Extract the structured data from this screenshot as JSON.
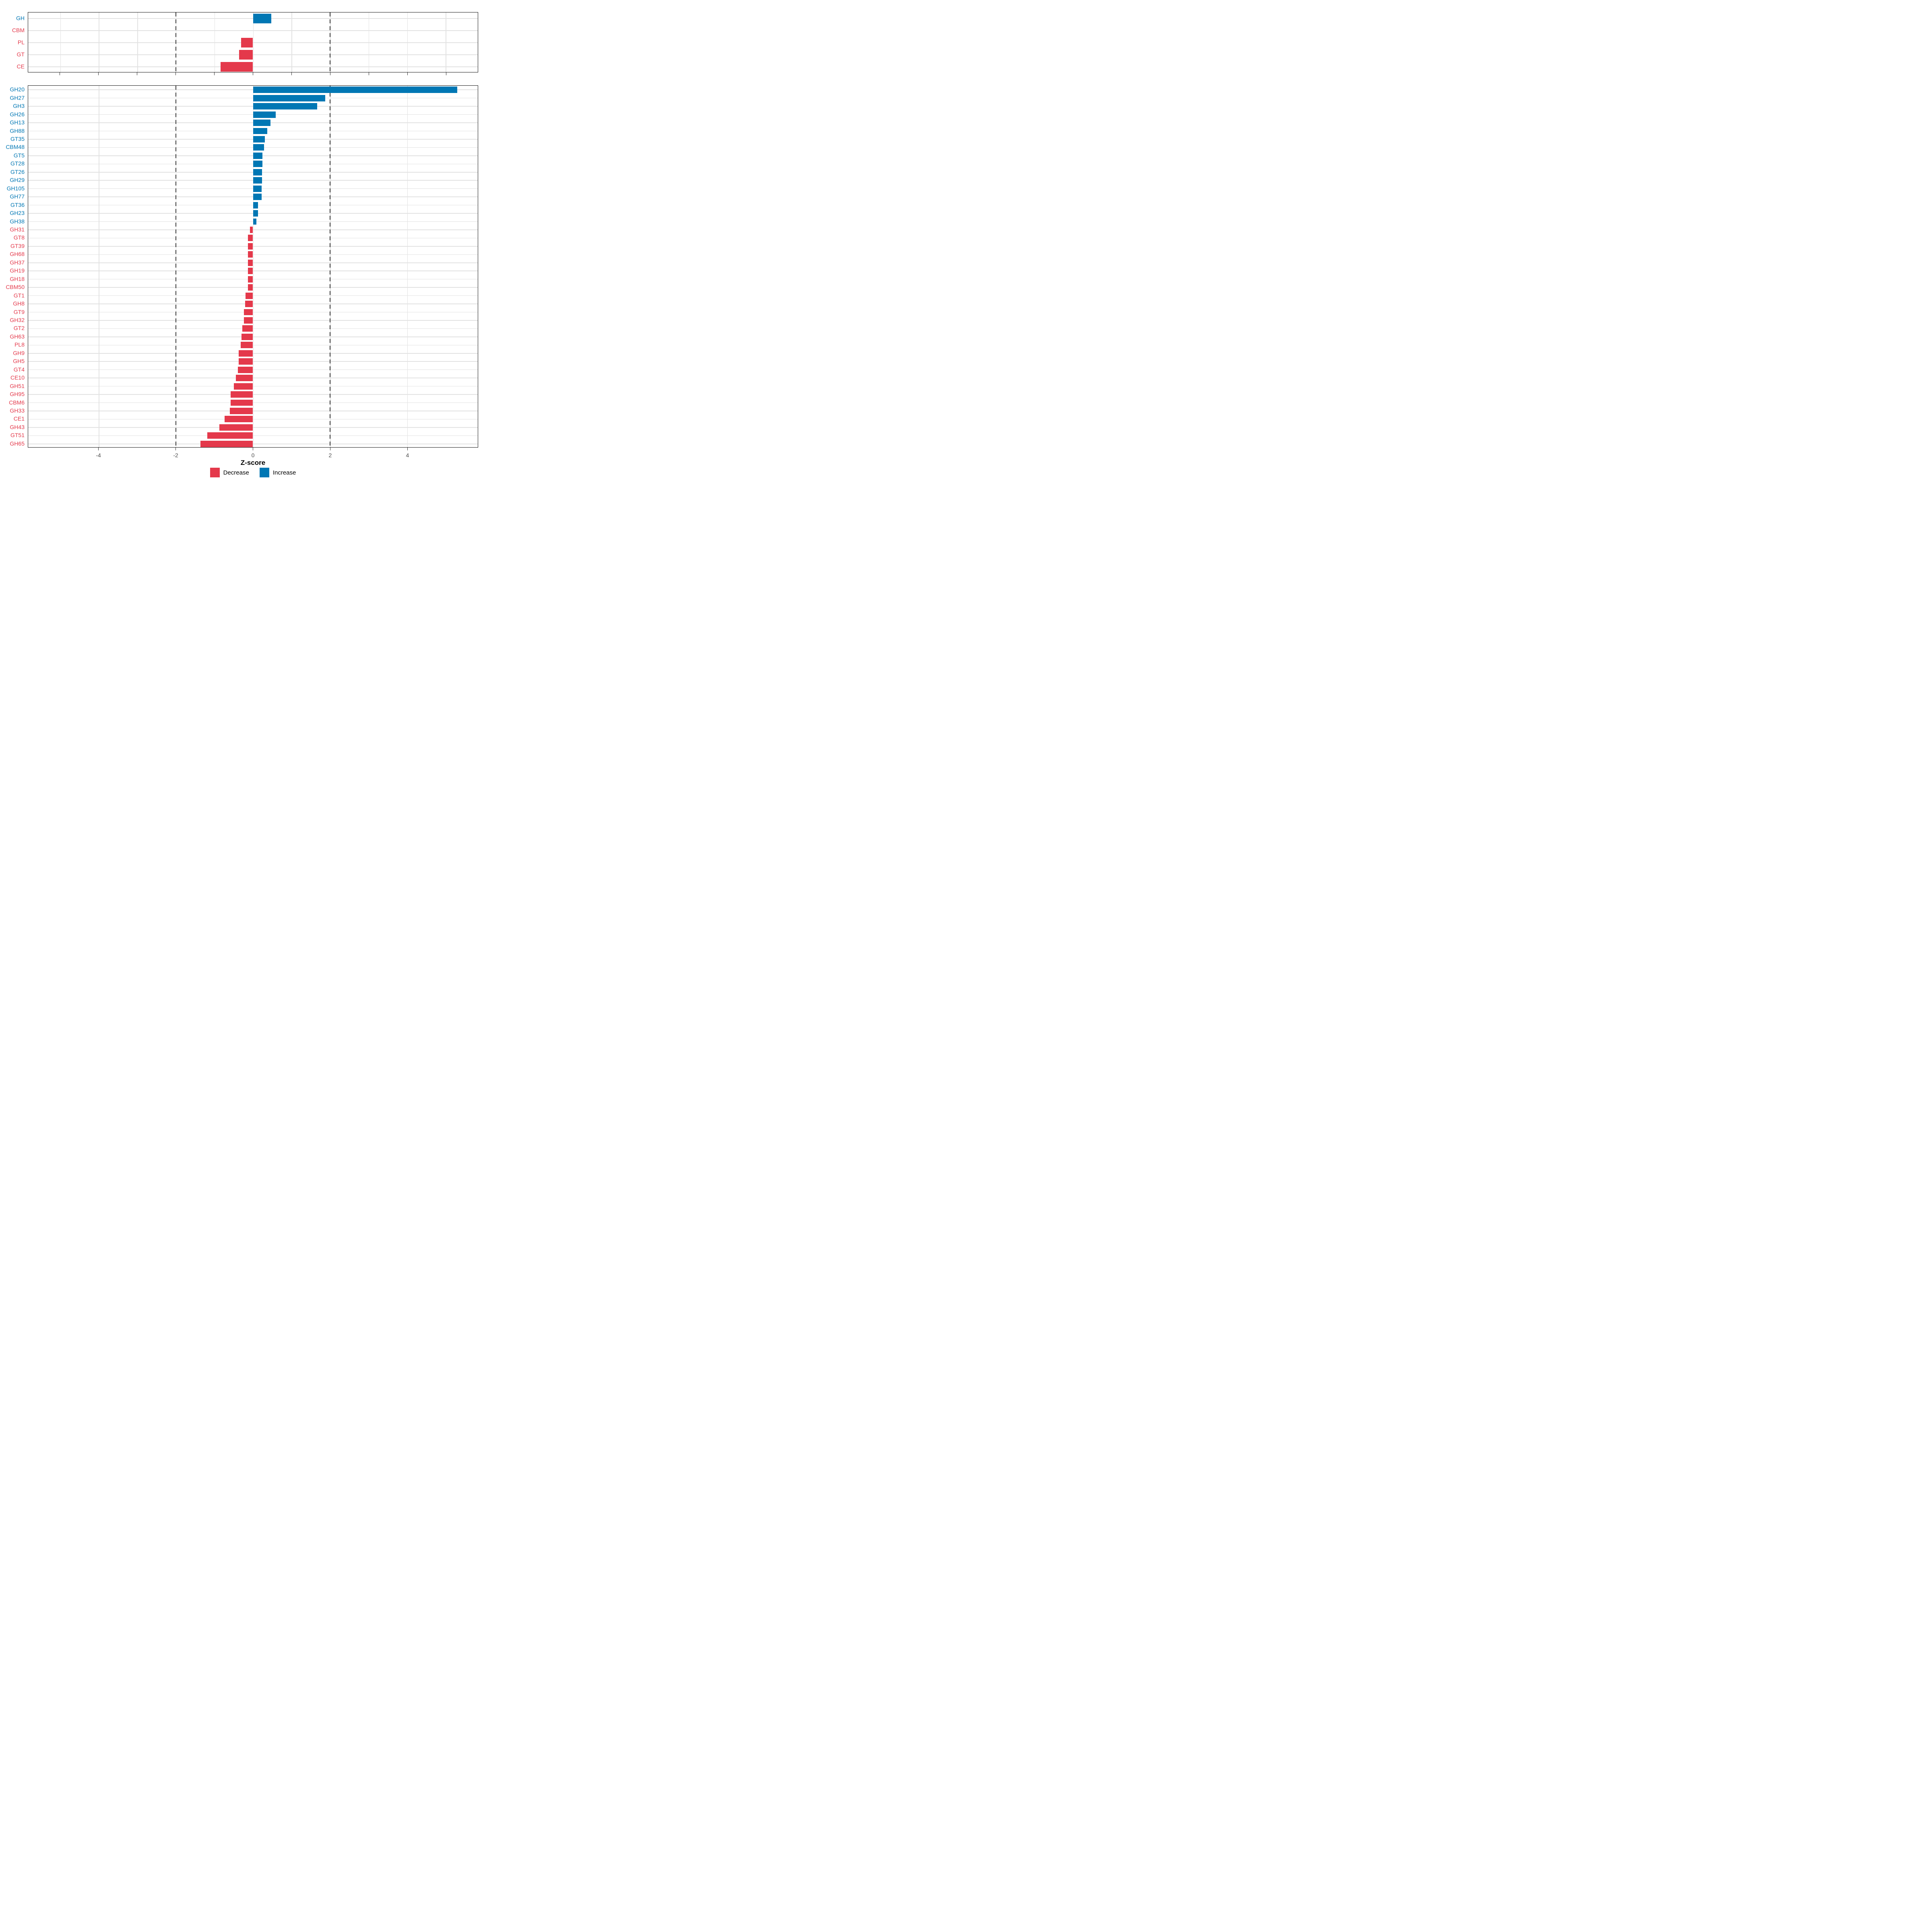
{
  "chart": {
    "xlabel": "Z-score",
    "legend": [
      {
        "label": "Decrease",
        "direction": "decrease"
      },
      {
        "label": "Increase",
        "direction": "increase"
      }
    ]
  },
  "colors": {
    "increase": "#0077B4",
    "decrease": "#E4394B",
    "grid": "#E2E2E2",
    "dashed_line": "#3A3A3A",
    "axis_text": "#4D4D4D",
    "panel_border": "#1A1A1A"
  },
  "chart_data": [
    {
      "type": "bar",
      "orientation": "horizontal",
      "panel": "top",
      "title": "",
      "xlabel": "Z-score",
      "xlim": [
        -5.83,
        5.83
      ],
      "grid_on": true,
      "categories": [
        "GH",
        "CBM",
        "PL",
        "GT",
        "CE"
      ],
      "values": [
        0.47,
        0.0,
        -0.31,
        -0.36,
        -0.84
      ],
      "directions": [
        "increase",
        "decrease",
        "decrease",
        "decrease",
        "decrease"
      ],
      "grid_at": [
        -5,
        -4,
        -3,
        -2,
        -1,
        0,
        1,
        2,
        3,
        4,
        5
      ],
      "dashed_at": [
        -2,
        2
      ],
      "ticks_at": [
        -5,
        -4,
        -3,
        -2,
        -1,
        0,
        1,
        2,
        3,
        4,
        5
      ],
      "tick_labels": []
    },
    {
      "type": "bar",
      "orientation": "horizontal",
      "panel": "bottom",
      "title": "",
      "xlabel": "Z-score",
      "xlim": [
        -5.83,
        5.83
      ],
      "grid_on": true,
      "categories": [
        "GH20",
        "GH27",
        "GH3",
        "GH26",
        "GH13",
        "GH88",
        "GT35",
        "CBM48",
        "GT5",
        "GT28",
        "GT26",
        "GH29",
        "GH105",
        "GH77",
        "GT36",
        "GH23",
        "GH38",
        "GH31",
        "GT8",
        "GT39",
        "GH68",
        "GH37",
        "GH19",
        "GH18",
        "CBM50",
        "GT1",
        "GH8",
        "GT9",
        "GH32",
        "GT2",
        "GH63",
        "PL8",
        "GH9",
        "GH5",
        "GT4",
        "CE10",
        "GH51",
        "GH95",
        "CBM6",
        "GH33",
        "CE1",
        "GH43",
        "GT51",
        "GH65"
      ],
      "values": [
        5.3,
        1.87,
        1.67,
        0.59,
        0.45,
        0.37,
        0.31,
        0.29,
        0.25,
        0.25,
        0.23,
        0.23,
        0.22,
        0.22,
        0.13,
        0.13,
        0.09,
        -0.08,
        -0.13,
        -0.13,
        -0.13,
        -0.13,
        -0.13,
        -0.13,
        -0.13,
        -0.19,
        -0.2,
        -0.23,
        -0.23,
        -0.28,
        -0.3,
        -0.32,
        -0.37,
        -0.37,
        -0.39,
        -0.44,
        -0.5,
        -0.58,
        -0.58,
        -0.6,
        -0.74,
        -0.87,
        -1.19,
        -1.36
      ],
      "directions": [
        "increase",
        "increase",
        "increase",
        "increase",
        "increase",
        "increase",
        "increase",
        "increase",
        "increase",
        "increase",
        "increase",
        "increase",
        "increase",
        "increase",
        "increase",
        "increase",
        "increase",
        "decrease",
        "decrease",
        "decrease",
        "decrease",
        "decrease",
        "decrease",
        "decrease",
        "decrease",
        "decrease",
        "decrease",
        "decrease",
        "decrease",
        "decrease",
        "decrease",
        "decrease",
        "decrease",
        "decrease",
        "decrease",
        "decrease",
        "decrease",
        "decrease",
        "decrease",
        "decrease",
        "decrease",
        "decrease",
        "decrease",
        "decrease"
      ],
      "grid_at": [
        -4,
        -2,
        0,
        2,
        4
      ],
      "dashed_at": [
        -2,
        2
      ],
      "ticks_at": [
        -4,
        -2,
        0,
        2,
        4
      ],
      "tick_labels": [
        "-4",
        "-2",
        "0",
        "2",
        "4"
      ]
    }
  ]
}
